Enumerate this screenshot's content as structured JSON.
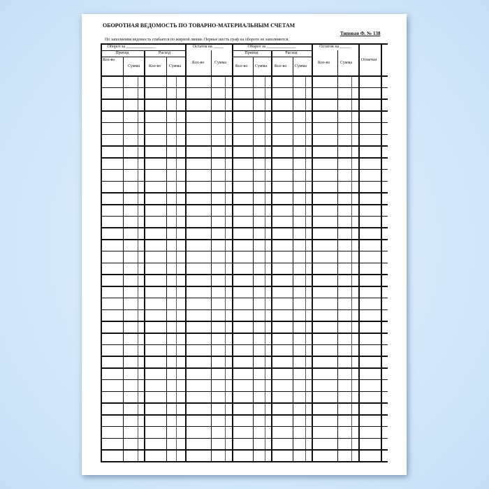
{
  "document": {
    "title": "ОБОРОТНАЯ ВЕДОМОСТЬ ПО ТОВАРНО-МАТЕРИАЛЬНЫМ СЧЕТАМ",
    "form_number": "Типовая Ф. № 138",
    "note": "По заполнении ведомость сгибается  по жирной линии. Первые шесть граф на обороте не заполняются.",
    "headers": {
      "turnover_1": "Оборот за ______________",
      "balance_1": "Остаток на _____",
      "turnover_2": "Оборот за ______________",
      "balance_2": "Остаток на _____",
      "income": "Приход",
      "expense": "Расход",
      "qty": "Кол-во",
      "sum": "Сумма",
      "marks": "Отметки"
    },
    "row_count": 33
  }
}
